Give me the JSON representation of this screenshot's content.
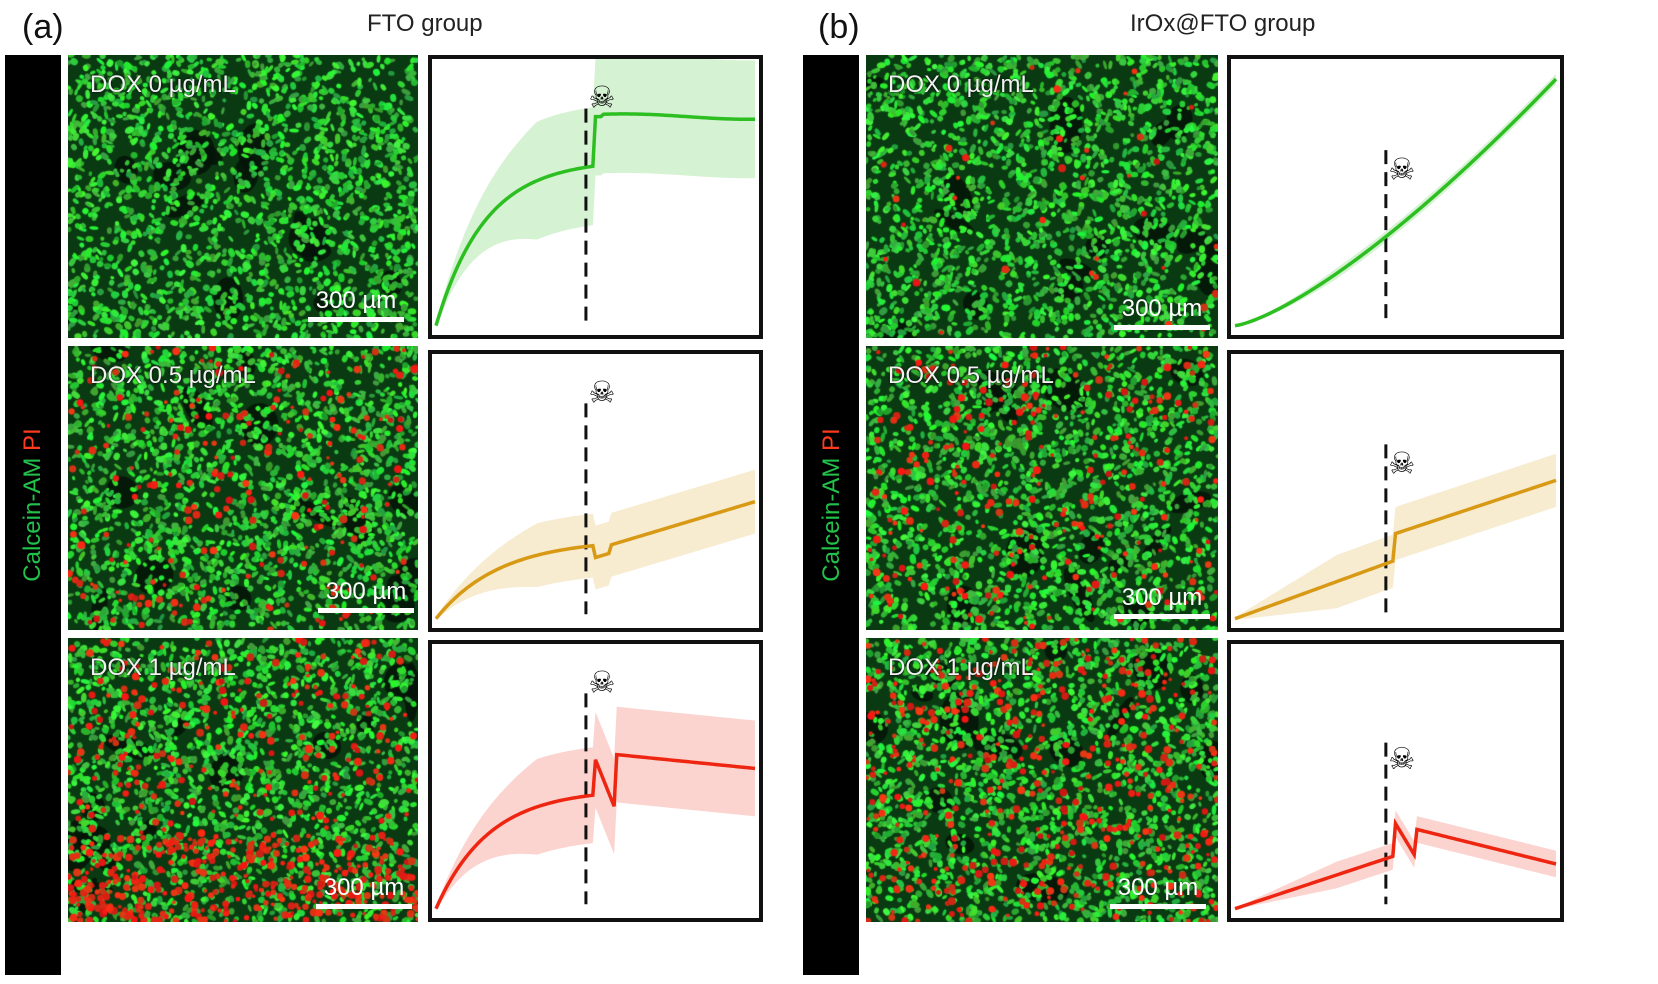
{
  "panels": [
    {
      "letter": "(a)",
      "title": "FTO group",
      "stain": {
        "calcein": "Calcein-AM",
        "pi": "PI"
      },
      "rows": [
        {
          "dox": "DOX 0 µg/mL",
          "scale": "300 µm",
          "color": "#2dbf21",
          "density": 0.0,
          "curve": "fto0"
        },
        {
          "dox": "DOX 0.5 µg/mL",
          "scale": "300 µm",
          "color": "#d89a15",
          "density": 0.12,
          "curve": "fto05"
        },
        {
          "dox": "DOX 1 µg/mL",
          "scale": "300 µm",
          "color": "#ee2611",
          "density": 0.35,
          "curve": "fto1"
        }
      ]
    },
    {
      "letter": "(b)",
      "title": "IrOx@FTO group",
      "stain": {
        "calcein": "Calcein-AM",
        "pi": "PI"
      },
      "rows": [
        {
          "dox": "DOX 0 µg/mL",
          "scale": "300 µm",
          "color": "#2dbf21",
          "density": 0.02,
          "curve": "irox0"
        },
        {
          "dox": "DOX 0.5 µg/mL",
          "scale": "300 µm",
          "color": "#d89a15",
          "density": 0.14,
          "curve": "irox05"
        },
        {
          "dox": "DOX 1 µg/mL",
          "scale": "300 µm",
          "color": "#ee2611",
          "density": 0.25,
          "curve": "irox1"
        }
      ]
    }
  ],
  "icons": {
    "death_marker": "skull-crossbones-icon"
  }
}
